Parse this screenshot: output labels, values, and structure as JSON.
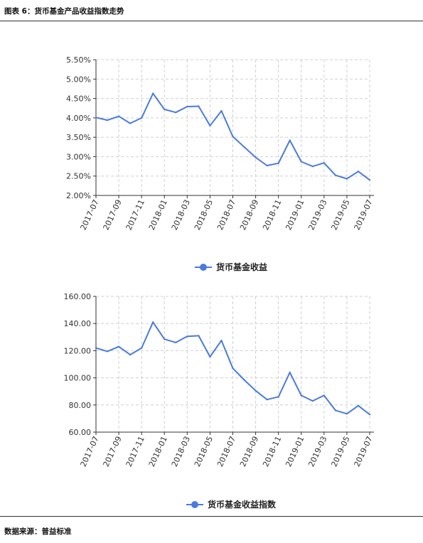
{
  "figure_title": "图表 6：货币基金产品收益指数走势",
  "source": "数据来源：普益标准",
  "colors": {
    "series": "#4a7bdc",
    "grid": "#cfcfcf",
    "axis": "#333333"
  },
  "chart_data": [
    {
      "type": "line",
      "title": "",
      "xlabel": "",
      "ylabel": "",
      "x": [
        "2017-07",
        "2017-08",
        "2017-09",
        "2017-10",
        "2017-11",
        "2017-12",
        "2018-01",
        "2018-02",
        "2018-03",
        "2018-04",
        "2018-05",
        "2018-06",
        "2018-07",
        "2018-08",
        "2018-09",
        "2018-10",
        "2018-11",
        "2018-12",
        "2019-01",
        "2019-02",
        "2019-03",
        "2019-04",
        "2019-05",
        "2019-06",
        "2019-07"
      ],
      "x_tick_labels": [
        "2017-07",
        "2017-09",
        "2017-11",
        "2018-01",
        "2018-03",
        "2018-05",
        "2018-07",
        "2018-09",
        "2018-11",
        "2019-01",
        "2019-03",
        "2019-05",
        "2019-07"
      ],
      "y_tick_labels": [
        "2.00%",
        "2.50%",
        "3.00%",
        "3.50%",
        "4.00%",
        "4.50%",
        "5.00%",
        "5.50%"
      ],
      "ylim": [
        2.0,
        5.5
      ],
      "y_step": 0.5,
      "grid": true,
      "legend_position": "bottom-center",
      "series": [
        {
          "name": "货币基金收益",
          "values": [
            4.01,
            3.94,
            4.04,
            3.86,
            4.0,
            4.63,
            4.22,
            4.14,
            4.29,
            4.3,
            3.8,
            4.18,
            3.52,
            3.25,
            2.98,
            2.77,
            2.83,
            3.42,
            2.87,
            2.75,
            2.84,
            2.52,
            2.43,
            2.62,
            2.4
          ]
        }
      ]
    },
    {
      "type": "line",
      "title": "",
      "xlabel": "",
      "ylabel": "",
      "x": [
        "2017-07",
        "2017-08",
        "2017-09",
        "2017-10",
        "2017-11",
        "2017-12",
        "2018-01",
        "2018-02",
        "2018-03",
        "2018-04",
        "2018-05",
        "2018-06",
        "2018-07",
        "2018-08",
        "2018-09",
        "2018-10",
        "2018-11",
        "2018-12",
        "2019-01",
        "2019-02",
        "2019-03",
        "2019-04",
        "2019-05",
        "2019-06",
        "2019-07"
      ],
      "x_tick_labels": [
        "2017-07",
        "2017-09",
        "2017-11",
        "2018-01",
        "2018-03",
        "2018-05",
        "2018-07",
        "2018-09",
        "2018-11",
        "2019-01",
        "2019-03",
        "2019-05",
        "2019-07"
      ],
      "y_tick_labels": [
        "60.00",
        "80.00",
        "100.00",
        "120.00",
        "140.00",
        "160.00"
      ],
      "ylim": [
        60,
        160
      ],
      "y_step": 20,
      "grid": true,
      "legend_position": "bottom-center",
      "series": [
        {
          "name": "货币基金收益指数",
          "values": [
            122,
            119.5,
            123,
            117,
            122,
            141,
            128.5,
            126,
            130.5,
            131,
            115.5,
            127.5,
            107,
            98.5,
            90.5,
            84,
            86,
            104,
            87,
            83,
            87,
            76,
            73.5,
            79.5,
            73
          ]
        }
      ]
    }
  ]
}
